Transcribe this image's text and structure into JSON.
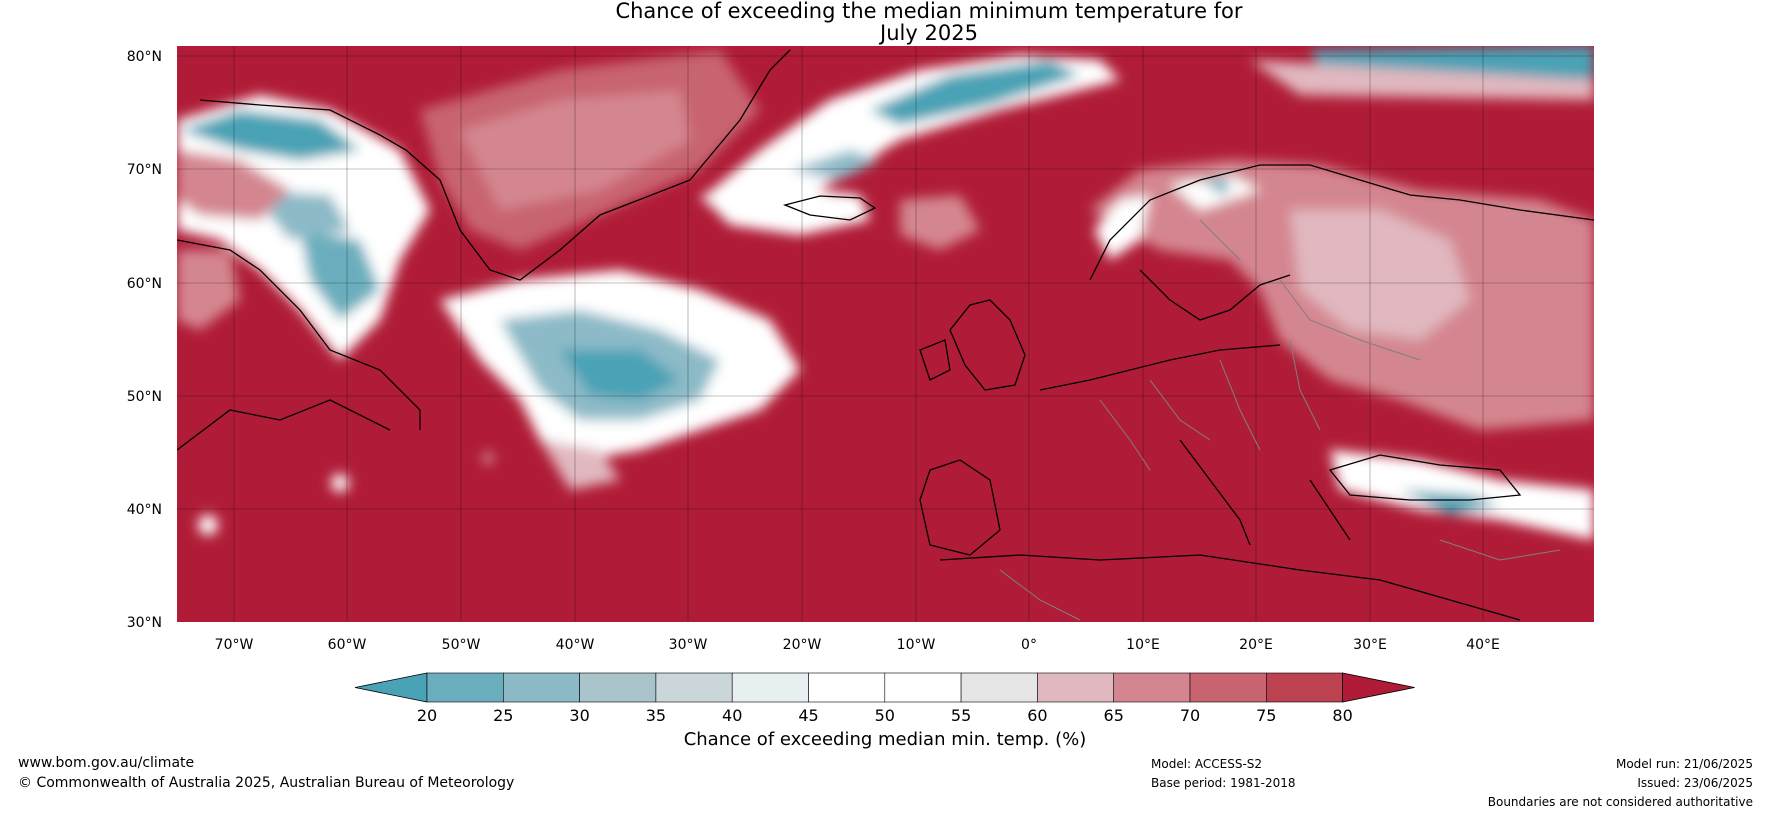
{
  "title": {
    "line1": "Chance of exceeding the median minimum temperature for",
    "line2": "July 2025"
  },
  "map": {
    "lat_ticks": [
      "80°N",
      "70°N",
      "60°N",
      "50°N",
      "40°N",
      "30°N"
    ],
    "lon_ticks": [
      "70°W",
      "60°W",
      "50°W",
      "40°W",
      "30°W",
      "20°W",
      "10°W",
      "0°",
      "10°E",
      "20°E",
      "30°E",
      "40°E"
    ],
    "colors": {
      "dominant": "#b01c37",
      "land_outline": "#000000",
      "borders": "#7f7f7f"
    }
  },
  "colorbar": {
    "ticks": [
      "20",
      "25",
      "30",
      "35",
      "40",
      "45",
      "50",
      "55",
      "60",
      "65",
      "70",
      "75",
      "80"
    ],
    "colors": [
      "#49a2b5",
      "#6aaebd",
      "#8cbac7",
      "#a9c5cb",
      "#cad6d9",
      "#e8eff0",
      "#ffffff",
      "#ffffff",
      "#e6e6e6",
      "#e1b8bf",
      "#d48690",
      "#c8646f",
      "#bd4251",
      "#b01c37"
    ],
    "label": "Chance of exceeding median min. temp. (%)"
  },
  "footer": {
    "website": "www.bom.gov.au/climate",
    "copyright": "© Commonwealth of Australia 2025, Australian Bureau of Meteorology",
    "model": "Model: ACCESS-S2",
    "base_period": "Base period: 1981-2018",
    "model_run": "Model run: 21/06/2025",
    "issued": "Issued: 23/06/2025",
    "disclaimer": "Boundaries are not considered authoritative"
  }
}
